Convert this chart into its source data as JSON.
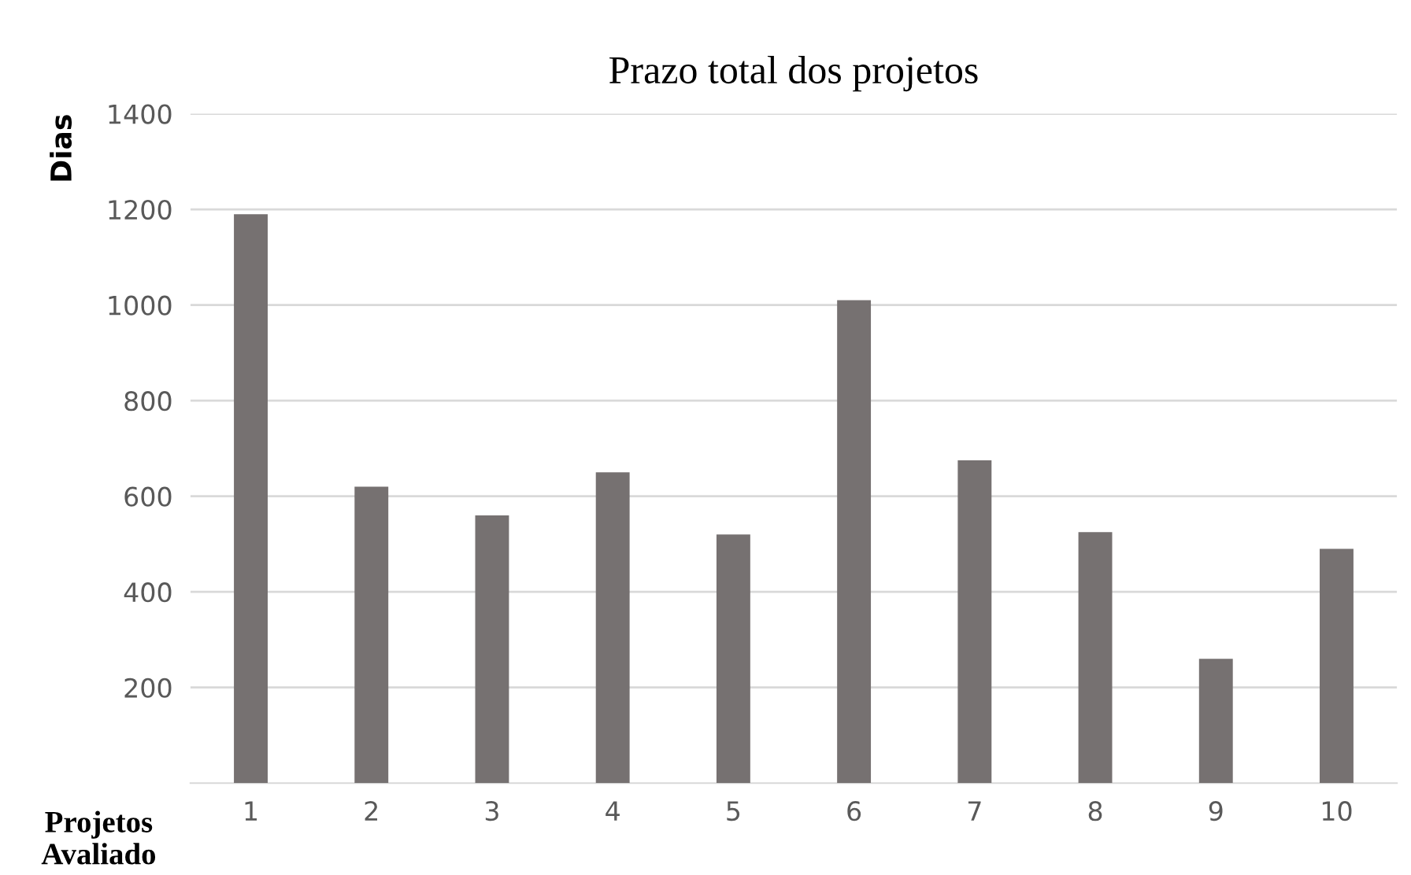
{
  "chart_data": {
    "type": "bar",
    "title": "Prazo total dos projetos",
    "xlabel": "Projetos Avaliado",
    "ylabel": "Dias",
    "categories": [
      "1",
      "2",
      "3",
      "4",
      "5",
      "6",
      "7",
      "8",
      "9",
      "10"
    ],
    "values": [
      1190,
      620,
      560,
      650,
      520,
      1010,
      675,
      525,
      260,
      490
    ],
    "color": "#767171",
    "ylim": [
      0,
      1400
    ],
    "yticks": [
      200,
      400,
      600,
      800,
      1000,
      1200,
      1400
    ],
    "grid": "y",
    "legend": false
  }
}
